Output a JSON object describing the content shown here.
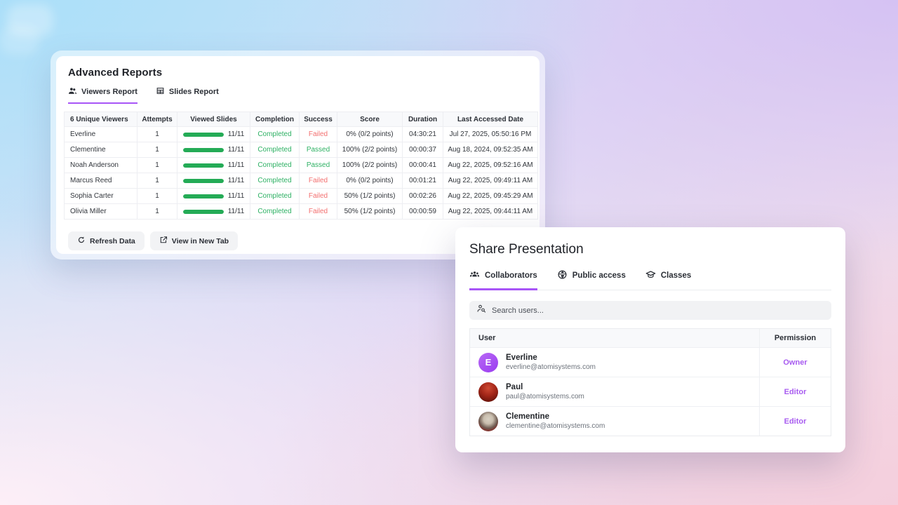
{
  "colors": {
    "accent_purple": "#a855f7",
    "permission_link": "#a85cf0",
    "success_green": "#2eb164",
    "fail_red": "#f37070",
    "progress_bar_green": "#24ab56",
    "bg_corner_top_left": "#abdff9",
    "bg_corner_top_right": "#d5c2f3",
    "bg_corner_bottom_right": "#f4cfdd",
    "bg_corner_bottom_left": "#fdeff7"
  },
  "reports_panel": {
    "title": "Advanced Reports",
    "tabs": [
      {
        "label": "Viewers Report",
        "icon": "people-icon",
        "active": true
      },
      {
        "label": "Slides Report",
        "icon": "table-icon",
        "active": false
      }
    ],
    "table": {
      "columns": [
        "6 Unique Viewers",
        "Attempts",
        "Viewed Slides",
        "Completion",
        "Success",
        "Score",
        "Duration",
        "Last Accessed Date"
      ],
      "rows": [
        {
          "viewer": "Everline",
          "attempts": "1",
          "viewed_slides": "11/11",
          "progress_pct": 100,
          "completion": "Completed",
          "success": "Failed",
          "score": "0% (0/2 points)",
          "duration": "04:30:21",
          "last_accessed": "Jul 27, 2025, 05:50:16 PM"
        },
        {
          "viewer": "Clementine",
          "attempts": "1",
          "viewed_slides": "11/11",
          "progress_pct": 100,
          "completion": "Completed",
          "success": "Passed",
          "score": "100% (2/2 points)",
          "duration": "00:00:37",
          "last_accessed": "Aug 18, 2024, 09:52:35 AM"
        },
        {
          "viewer": "Noah Anderson",
          "attempts": "1",
          "viewed_slides": "11/11",
          "progress_pct": 100,
          "completion": "Completed",
          "success": "Passed",
          "score": "100% (2/2 points)",
          "duration": "00:00:41",
          "last_accessed": "Aug 22, 2025, 09:52:16 AM"
        },
        {
          "viewer": "Marcus Reed",
          "attempts": "1",
          "viewed_slides": "11/11",
          "progress_pct": 100,
          "completion": "Completed",
          "success": "Failed",
          "score": "0% (0/2 points)",
          "duration": "00:01:21",
          "last_accessed": "Aug 22, 2025, 09:49:11 AM"
        },
        {
          "viewer": "Sophia Carter",
          "attempts": "1",
          "viewed_slides": "11/11",
          "progress_pct": 100,
          "completion": "Completed",
          "success": "Failed",
          "score": "50% (1/2 points)",
          "duration": "00:02:26",
          "last_accessed": "Aug 22, 2025, 09:45:29 AM"
        },
        {
          "viewer": "Olivia Miller",
          "attempts": "1",
          "viewed_slides": "11/11",
          "progress_pct": 100,
          "completion": "Completed",
          "success": "Failed",
          "score": "50% (1/2 points)",
          "duration": "00:00:59",
          "last_accessed": "Aug 22, 2025, 09:44:11 AM"
        }
      ]
    },
    "buttons": {
      "refresh": "Refresh Data",
      "view_new_tab": "View in New Tab"
    }
  },
  "share_panel": {
    "title": "Share Presentation",
    "tabs": [
      {
        "label": "Collaborators",
        "icon": "group-icon",
        "active": true
      },
      {
        "label": "Public access",
        "icon": "globe-icon",
        "active": false
      },
      {
        "label": "Classes",
        "icon": "graduation-cap-icon",
        "active": false
      }
    ],
    "search": {
      "placeholder": "Search users..."
    },
    "table": {
      "columns": {
        "user": "User",
        "permission": "Permission"
      },
      "rows": [
        {
          "name": "Everline",
          "email": "everline@atomisystems.com",
          "permission": "Owner",
          "avatar_initial": "E"
        },
        {
          "name": "Paul",
          "email": "paul@atomisystems.com",
          "permission": "Editor",
          "avatar_initial": ""
        },
        {
          "name": "Clementine",
          "email": "clementine@atomisystems.com",
          "permission": "Editor",
          "avatar_initial": ""
        }
      ]
    }
  }
}
